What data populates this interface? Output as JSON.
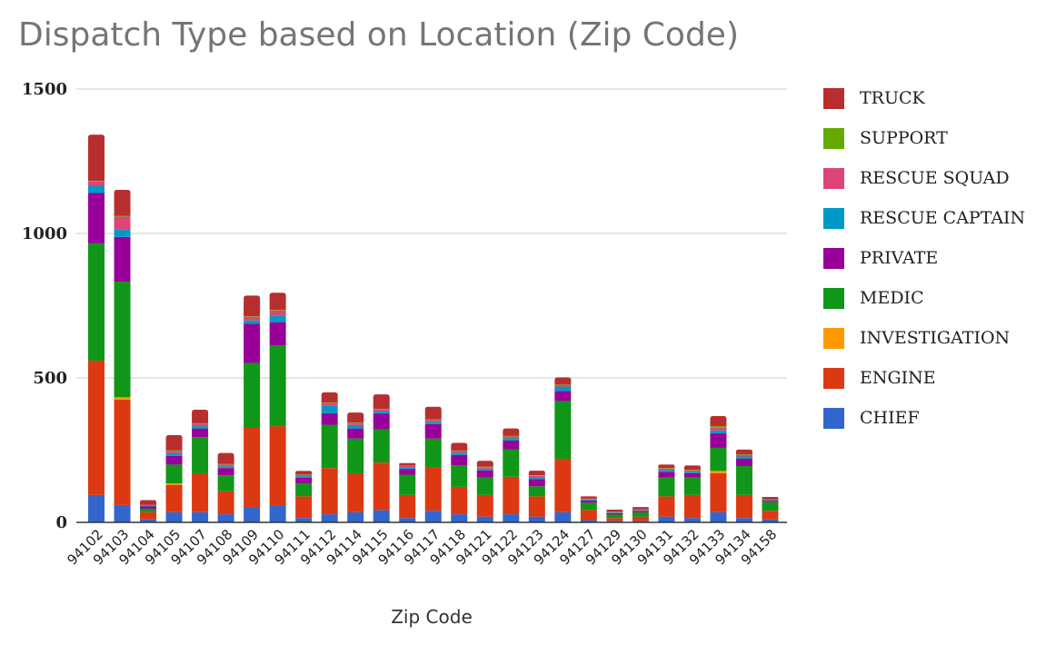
{
  "chart_data": {
    "type": "bar",
    "stacked": true,
    "title": "Dispatch Type based on Location (Zip Code)",
    "xlabel": "Zip Code",
    "ylabel": "",
    "ylim": [
      0,
      1500
    ],
    "yticks": [
      "0",
      "500",
      "1000",
      "1500"
    ],
    "grid": true,
    "legend_position": "right",
    "categories": [
      "94102",
      "94103",
      "94104",
      "94105",
      "94107",
      "94108",
      "94109",
      "94110",
      "94111",
      "94112",
      "94114",
      "94115",
      "94116",
      "94117",
      "94118",
      "94121",
      "94122",
      "94123",
      "94124",
      "94127",
      "94129",
      "94130",
      "94131",
      "94132",
      "94133",
      "94134",
      "94158"
    ],
    "series": [
      {
        "name": "CHIEF",
        "color": "#3366cc",
        "values": [
          95,
          60,
          10,
          35,
          35,
          28,
          52,
          58,
          15,
          28,
          35,
          42,
          15,
          40,
          28,
          20,
          28,
          20,
          35,
          8,
          5,
          5,
          20,
          15,
          35,
          15,
          10
        ]
      },
      {
        "name": "ENGINE",
        "color": "#dc3912",
        "values": [
          465,
          365,
          25,
          95,
          135,
          80,
          275,
          275,
          75,
          160,
          135,
          165,
          80,
          150,
          95,
          75,
          130,
          70,
          185,
          35,
          10,
          15,
          70,
          80,
          135,
          80,
          30
        ]
      },
      {
        "name": "INVESTIGATION",
        "color": "#ff9900",
        "values": [
          0,
          8,
          0,
          5,
          0,
          0,
          0,
          0,
          0,
          0,
          0,
          0,
          0,
          0,
          0,
          0,
          0,
          0,
          0,
          0,
          0,
          0,
          0,
          0,
          8,
          0,
          0
        ]
      },
      {
        "name": "MEDIC",
        "color": "#109618",
        "values": [
          405,
          400,
          12,
          65,
          125,
          55,
          225,
          280,
          45,
          150,
          120,
          115,
          70,
          100,
          75,
          60,
          95,
          35,
          200,
          25,
          12,
          15,
          65,
          60,
          80,
          100,
          30
        ]
      },
      {
        "name": "PRIVATE",
        "color": "#990099",
        "values": [
          175,
          155,
          8,
          30,
          30,
          25,
          135,
          80,
          20,
          40,
          35,
          55,
          20,
          50,
          35,
          25,
          30,
          25,
          35,
          8,
          5,
          5,
          20,
          15,
          50,
          25,
          5
        ]
      },
      {
        "name": "RESCUE CAPTAIN",
        "color": "#0099c6",
        "values": [
          25,
          25,
          3,
          10,
          8,
          6,
          12,
          22,
          5,
          25,
          12,
          8,
          6,
          8,
          8,
          6,
          8,
          6,
          15,
          3,
          2,
          2,
          6,
          5,
          10,
          8,
          2
        ]
      },
      {
        "name": "RESCUE SQUAD",
        "color": "#dd4477",
        "values": [
          15,
          45,
          3,
          8,
          8,
          6,
          12,
          18,
          5,
          10,
          6,
          6,
          5,
          6,
          6,
          5,
          6,
          5,
          5,
          2,
          2,
          2,
          5,
          5,
          10,
          6,
          2
        ]
      },
      {
        "name": "SUPPORT",
        "color": "#66aa00",
        "values": [
          2,
          3,
          0,
          2,
          2,
          2,
          2,
          2,
          1,
          2,
          2,
          2,
          1,
          2,
          2,
          2,
          2,
          2,
          2,
          1,
          1,
          1,
          2,
          2,
          5,
          2,
          1
        ]
      },
      {
        "name": "TRUCK",
        "color": "#b82e2e",
        "values": [
          160,
          90,
          16,
          52,
          47,
          38,
          72,
          60,
          12,
          35,
          35,
          50,
          8,
          44,
          26,
          20,
          26,
          16,
          25,
          8,
          7,
          8,
          12,
          15,
          35,
          16,
          8
        ]
      }
    ]
  }
}
